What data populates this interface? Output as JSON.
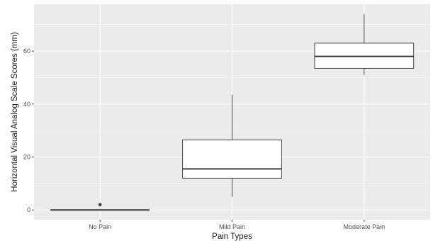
{
  "chart_data": {
    "type": "box",
    "xlabel": "Pain Types",
    "ylabel": "Horizontal Visual Analog Scale Scores (mm)",
    "categories": [
      "No Pain",
      "Mild Pain",
      "Moderate Pain"
    ],
    "boxes": [
      {
        "category": "No Pain",
        "whisker_low": 0,
        "q1": 0,
        "median": 0,
        "q3": 0,
        "whisker_high": 0,
        "outliers": [
          2
        ]
      },
      {
        "category": "Mild Pain",
        "whisker_low": 5,
        "q1": 12,
        "median": 15.5,
        "q3": 26.5,
        "whisker_high": 43.5,
        "outliers": []
      },
      {
        "category": "Moderate Pain",
        "whisker_low": 51,
        "q1": 53.5,
        "median": 58,
        "q3": 63,
        "whisker_high": 74,
        "outliers": []
      }
    ],
    "yticks": [
      0,
      20,
      40,
      60
    ],
    "ylim": [
      -3.7,
      77.7
    ],
    "grid": true,
    "colors": {
      "panel_background": "#ebebeb",
      "grid_major": "#ffffff",
      "box_fill": "#ffffff",
      "box_stroke": "#333333",
      "outlier": "#333333"
    }
  }
}
